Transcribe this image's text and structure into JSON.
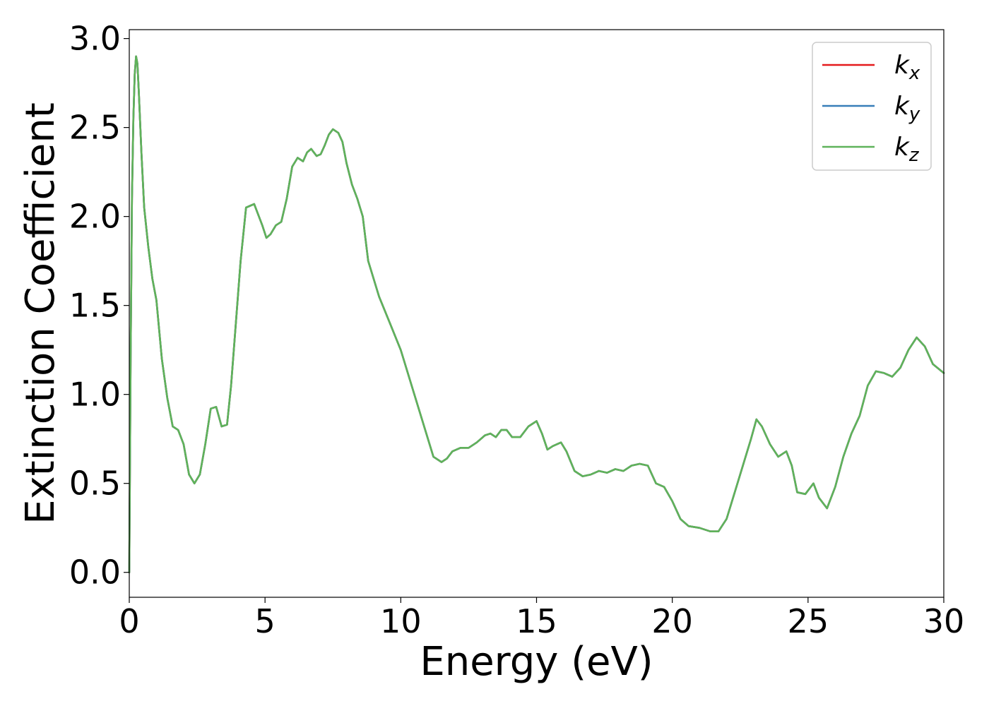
{
  "chart_data": {
    "type": "line",
    "title": "",
    "xlabel": "Energy (eV)",
    "ylabel": "Extinction Coefficient",
    "xlim": [
      0,
      30
    ],
    "ylim": [
      -0.14,
      3.05
    ],
    "xticks": [
      0,
      5,
      10,
      15,
      20,
      25,
      30
    ],
    "xtick_labels": [
      "0",
      "5",
      "10",
      "15",
      "20",
      "25",
      "30"
    ],
    "yticks": [
      0.0,
      0.5,
      1.0,
      1.5,
      2.0,
      2.5,
      3.0
    ],
    "ytick_labels": [
      "0.0",
      "0.5",
      "1.0",
      "1.5",
      "2.0",
      "2.5",
      "3.0"
    ],
    "grid": false,
    "legend_position": "top-right",
    "colors": {
      "k_x": "#e41a1c",
      "k_y": "#377eb8",
      "k_z": "#5fb35a"
    },
    "x": [
      0.0,
      0.05,
      0.1,
      0.15,
      0.2,
      0.25,
      0.3,
      0.35,
      0.45,
      0.55,
      0.7,
      0.85,
      1.0,
      1.2,
      1.4,
      1.6,
      1.8,
      2.0,
      2.2,
      2.4,
      2.6,
      2.8,
      3.0,
      3.2,
      3.4,
      3.6,
      3.75,
      3.9,
      4.1,
      4.3,
      4.6,
      4.9,
      5.05,
      5.2,
      5.4,
      5.6,
      5.8,
      6.0,
      6.2,
      6.4,
      6.55,
      6.7,
      6.9,
      7.05,
      7.2,
      7.35,
      7.5,
      7.7,
      7.85,
      8.0,
      8.2,
      8.4,
      8.6,
      8.8,
      9.2,
      9.6,
      10.0,
      10.4,
      10.8,
      11.2,
      11.5,
      11.7,
      11.9,
      12.2,
      12.5,
      12.8,
      13.1,
      13.3,
      13.5,
      13.7,
      13.9,
      14.1,
      14.4,
      14.7,
      15.0,
      15.2,
      15.4,
      15.6,
      15.9,
      16.1,
      16.4,
      16.7,
      17.0,
      17.3,
      17.6,
      17.9,
      18.2,
      18.5,
      18.8,
      19.1,
      19.4,
      19.7,
      20.0,
      20.3,
      20.6,
      21.0,
      21.4,
      21.7,
      22.0,
      22.3,
      22.6,
      22.9,
      23.1,
      23.3,
      23.6,
      23.9,
      24.2,
      24.4,
      24.6,
      24.9,
      25.2,
      25.4,
      25.7,
      26.0,
      26.3,
      26.6,
      26.9,
      27.2,
      27.5,
      27.8,
      28.1,
      28.4,
      28.7,
      29.0,
      29.3,
      29.6,
      30.0
    ],
    "series": [
      {
        "name": "k_x",
        "label": "k",
        "subscript": "x",
        "values": [
          0.0,
          1.2,
          2.1,
          2.55,
          2.8,
          2.9,
          2.86,
          2.7,
          2.35,
          2.05,
          1.83,
          1.65,
          1.53,
          1.2,
          0.98,
          0.82,
          0.8,
          0.72,
          0.55,
          0.5,
          0.55,
          0.72,
          0.92,
          0.93,
          0.82,
          0.83,
          1.05,
          1.35,
          1.75,
          2.05,
          2.07,
          1.95,
          1.88,
          1.9,
          1.95,
          1.97,
          2.1,
          2.28,
          2.33,
          2.31,
          2.36,
          2.38,
          2.34,
          2.35,
          2.4,
          2.46,
          2.49,
          2.47,
          2.42,
          2.3,
          2.18,
          2.1,
          2.0,
          1.75,
          1.55,
          1.4,
          1.25,
          1.05,
          0.85,
          0.65,
          0.62,
          0.64,
          0.68,
          0.7,
          0.7,
          0.73,
          0.77,
          0.78,
          0.76,
          0.8,
          0.8,
          0.76,
          0.76,
          0.82,
          0.85,
          0.78,
          0.69,
          0.71,
          0.73,
          0.68,
          0.57,
          0.54,
          0.55,
          0.57,
          0.56,
          0.58,
          0.57,
          0.6,
          0.61,
          0.6,
          0.5,
          0.48,
          0.4,
          0.3,
          0.26,
          0.25,
          0.23,
          0.23,
          0.3,
          0.45,
          0.6,
          0.75,
          0.86,
          0.82,
          0.72,
          0.65,
          0.68,
          0.6,
          0.45,
          0.44,
          0.5,
          0.42,
          0.36,
          0.48,
          0.65,
          0.78,
          0.88,
          1.05,
          1.13,
          1.12,
          1.1,
          1.15,
          1.25,
          1.32,
          1.27,
          1.17,
          1.12
        ]
      },
      {
        "name": "k_y",
        "label": "k",
        "subscript": "y",
        "values": [
          0.0,
          1.2,
          2.1,
          2.55,
          2.8,
          2.9,
          2.86,
          2.7,
          2.35,
          2.05,
          1.83,
          1.65,
          1.53,
          1.2,
          0.98,
          0.82,
          0.8,
          0.72,
          0.55,
          0.5,
          0.55,
          0.72,
          0.92,
          0.93,
          0.82,
          0.83,
          1.05,
          1.35,
          1.75,
          2.05,
          2.07,
          1.95,
          1.88,
          1.9,
          1.95,
          1.97,
          2.1,
          2.28,
          2.33,
          2.31,
          2.36,
          2.38,
          2.34,
          2.35,
          2.4,
          2.46,
          2.49,
          2.47,
          2.42,
          2.3,
          2.18,
          2.1,
          2.0,
          1.75,
          1.55,
          1.4,
          1.25,
          1.05,
          0.85,
          0.65,
          0.62,
          0.64,
          0.68,
          0.7,
          0.7,
          0.73,
          0.77,
          0.78,
          0.76,
          0.8,
          0.8,
          0.76,
          0.76,
          0.82,
          0.85,
          0.78,
          0.69,
          0.71,
          0.73,
          0.68,
          0.57,
          0.54,
          0.55,
          0.57,
          0.56,
          0.58,
          0.57,
          0.6,
          0.61,
          0.6,
          0.5,
          0.48,
          0.4,
          0.3,
          0.26,
          0.25,
          0.23,
          0.23,
          0.3,
          0.45,
          0.6,
          0.75,
          0.86,
          0.82,
          0.72,
          0.65,
          0.68,
          0.6,
          0.45,
          0.44,
          0.5,
          0.42,
          0.36,
          0.48,
          0.65,
          0.78,
          0.88,
          1.05,
          1.13,
          1.12,
          1.1,
          1.15,
          1.25,
          1.32,
          1.27,
          1.17,
          1.12
        ]
      },
      {
        "name": "k_z",
        "label": "k",
        "subscript": "z",
        "values": [
          0.0,
          1.2,
          2.1,
          2.55,
          2.8,
          2.9,
          2.86,
          2.7,
          2.35,
          2.05,
          1.83,
          1.65,
          1.53,
          1.2,
          0.98,
          0.82,
          0.8,
          0.72,
          0.55,
          0.5,
          0.55,
          0.72,
          0.92,
          0.93,
          0.82,
          0.83,
          1.05,
          1.35,
          1.75,
          2.05,
          2.07,
          1.95,
          1.88,
          1.9,
          1.95,
          1.97,
          2.1,
          2.28,
          2.33,
          2.31,
          2.36,
          2.38,
          2.34,
          2.35,
          2.4,
          2.46,
          2.49,
          2.47,
          2.42,
          2.3,
          2.18,
          2.1,
          2.0,
          1.75,
          1.55,
          1.4,
          1.25,
          1.05,
          0.85,
          0.65,
          0.62,
          0.64,
          0.68,
          0.7,
          0.7,
          0.73,
          0.77,
          0.78,
          0.76,
          0.8,
          0.8,
          0.76,
          0.76,
          0.82,
          0.85,
          0.78,
          0.69,
          0.71,
          0.73,
          0.68,
          0.57,
          0.54,
          0.55,
          0.57,
          0.56,
          0.58,
          0.57,
          0.6,
          0.61,
          0.6,
          0.5,
          0.48,
          0.4,
          0.3,
          0.26,
          0.25,
          0.23,
          0.23,
          0.3,
          0.45,
          0.6,
          0.75,
          0.86,
          0.82,
          0.72,
          0.65,
          0.68,
          0.6,
          0.45,
          0.44,
          0.5,
          0.42,
          0.36,
          0.48,
          0.65,
          0.78,
          0.88,
          1.05,
          1.13,
          1.12,
          1.1,
          1.15,
          1.25,
          1.32,
          1.27,
          1.17,
          1.12
        ]
      }
    ]
  }
}
